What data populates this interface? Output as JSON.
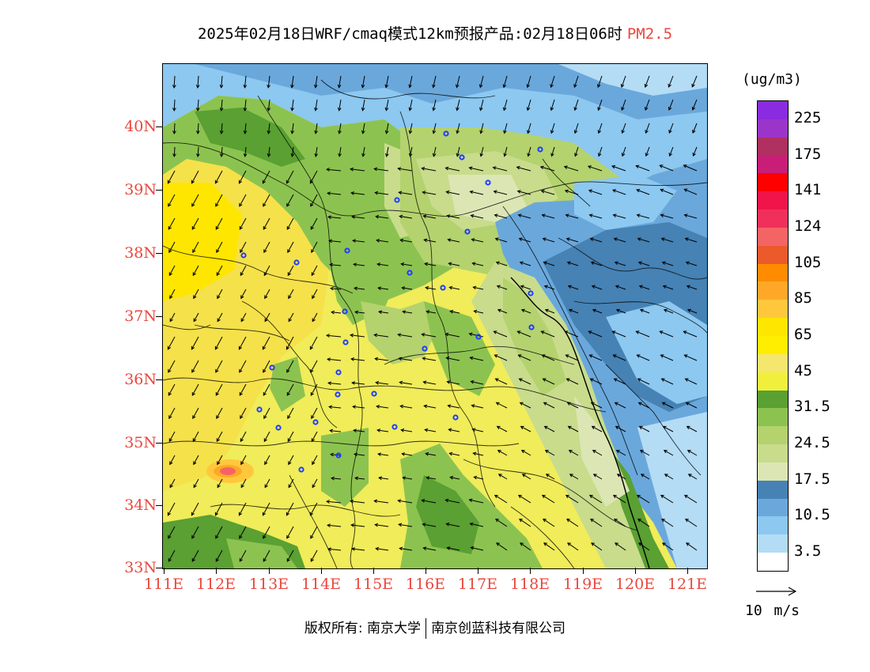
{
  "title": {
    "text": "2025年02月18日WRF/cmaq模式12km预报产品:02月18日06时",
    "pollutant": "PM2.5"
  },
  "colorbar": {
    "unit": "(ug/m3)",
    "levels": [
      {
        "label": "225",
        "color": "#8a2be2"
      },
      {
        "label": "",
        "color": "#9b35c9"
      },
      {
        "label": "175",
        "color": "#b03060"
      },
      {
        "label": "",
        "color": "#c81e78"
      },
      {
        "label": "141",
        "color": "#ff0000"
      },
      {
        "label": "",
        "color": "#f0144a"
      },
      {
        "label": "124",
        "color": "#f0305a"
      },
      {
        "label": "",
        "color": "#f56464"
      },
      {
        "label": "105",
        "color": "#eb5a2a"
      },
      {
        "label": "",
        "color": "#ff8c00"
      },
      {
        "label": "85",
        "color": "#ffa828"
      },
      {
        "label": "",
        "color": "#ffc83c"
      },
      {
        "label": "65",
        "color": "#ffe600"
      },
      {
        "label": "",
        "color": "#ffee00"
      },
      {
        "label": "45",
        "color": "#f5e66e"
      },
      {
        "label": "",
        "color": "#f0f03c"
      },
      {
        "label": "31.5",
        "color": "#5aa032"
      },
      {
        "label": "",
        "color": "#8cc350"
      },
      {
        "label": "24.5",
        "color": "#b4d26e"
      },
      {
        "label": "",
        "color": "#c8dc8c"
      },
      {
        "label": "17.5",
        "color": "#dce6b4"
      },
      {
        "label": "",
        "color": "#4682b4"
      },
      {
        "label": "10.5",
        "color": "#6aa8dc"
      },
      {
        "label": "",
        "color": "#8cc8f0"
      },
      {
        "label": "3.5",
        "color": "#b4dcf5"
      },
      {
        "label": "",
        "color": "#ffffff"
      }
    ]
  },
  "axes": {
    "lat_labels": [
      "40N",
      "39N",
      "38N",
      "37N",
      "36N",
      "35N",
      "34N",
      "33N"
    ],
    "lon_labels": [
      "111E",
      "112E",
      "113E",
      "114E",
      "115E",
      "116E",
      "117E",
      "118E",
      "119E",
      "120E",
      "121E"
    ]
  },
  "wind_reference": {
    "label": "10 m/s"
  },
  "footer": {
    "copyright_prefix": "版权所有: 南京大学",
    "company": "南京创蓝科技有限公司"
  },
  "colors": {
    "label_red": "#e8483e"
  }
}
